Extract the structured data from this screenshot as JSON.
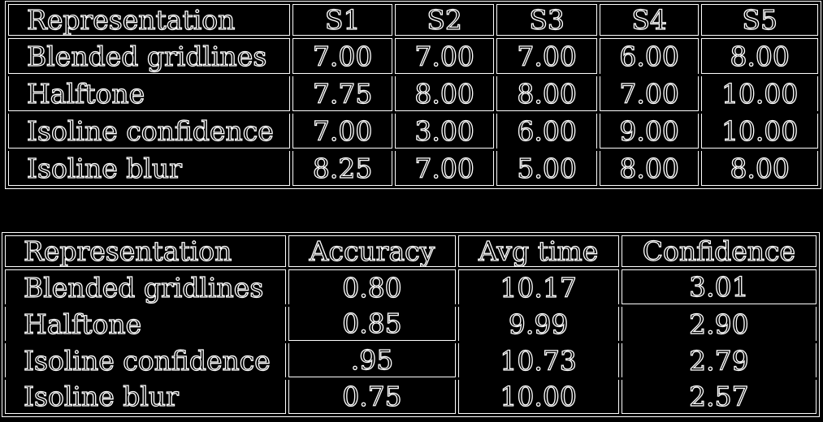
{
  "table1": {
    "headers": [
      "Representation",
      "S1",
      "S2",
      "S3",
      "S4",
      "S5"
    ],
    "rows": [
      [
        "Blended gridlines",
        "7.00",
        "7.00",
        "7.00",
        "6.00",
        "8.00"
      ],
      [
        "Halftone",
        "7.75",
        "8.00",
        "8.00",
        "7.00",
        "10.00"
      ],
      [
        "Isoline confidence",
        "7.00",
        "3.00",
        "6.00",
        "9.00",
        "10.00"
      ],
      [
        "Isoline blur",
        "8.25",
        "7.00",
        "5.00",
        "8.00",
        "8.00"
      ]
    ]
  },
  "table2": {
    "headers": [
      "Representation",
      "Accuracy",
      "Avg time",
      "Confidence"
    ],
    "rows": [
      [
        "Blended gridlines",
        "0.80",
        "10.17",
        "3.01"
      ],
      [
        "Halftone",
        "0.85",
        "9.99",
        "2.90"
      ],
      [
        "Isoline confidence",
        ".95",
        "10.73",
        "2.79"
      ],
      [
        "Isoline blur",
        "0.75",
        "10.00",
        "2.57"
      ]
    ]
  }
}
